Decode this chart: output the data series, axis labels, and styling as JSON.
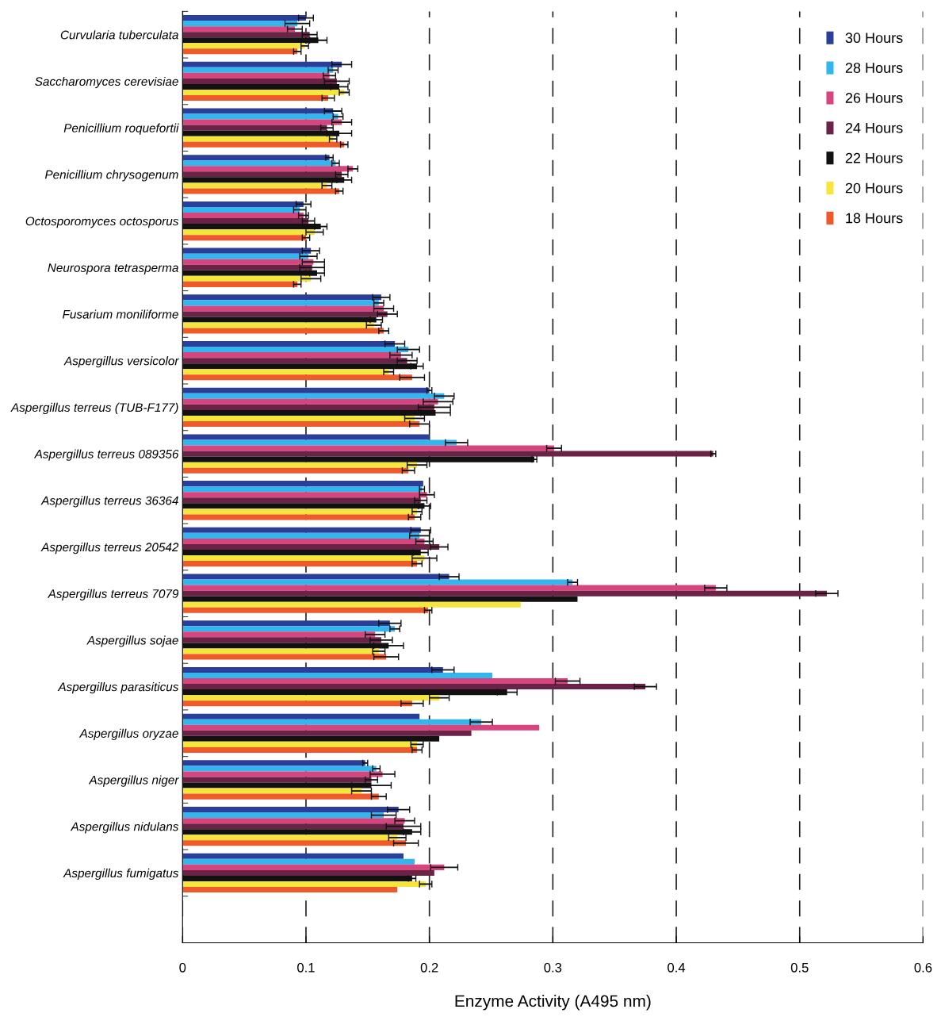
{
  "chart_data": {
    "type": "bar",
    "orientation": "horizontal",
    "xlabel": "Enzyme Activity (A495 nm)",
    "categories": [
      "Curvularia tuberculata",
      "Saccharomyces cerevisiae",
      "Penicillium roquefortii",
      "Penicillium chrysogenum",
      "Octosporomyces octosporus",
      "Neurospora tetrasperma",
      "Fusarium moniliforme",
      "Aspergillus versicolor",
      "Aspergillus terreus (TUB-F177)",
      "Aspergillus terreus 089356",
      "Aspergillus terreus 36364",
      "Aspergillus terreus 20542",
      "Aspergillus terreus 7079",
      "Aspergillus sojae",
      "Aspergillus parasiticus",
      "Aspergillus oryzae",
      "Aspergillus niger",
      "Aspergillus nidulans",
      "Aspergillus fumigatus"
    ],
    "series": [
      {
        "name": "30 Hours",
        "color": "#2b3f9a",
        "values": [
          0.1,
          0.129,
          0.122,
          0.119,
          0.098,
          0.104,
          0.161,
          0.172,
          0.2,
          0.2,
          0.195,
          0.193,
          0.216,
          0.168,
          0.211,
          0.192,
          0.148,
          0.175,
          0.179
        ],
        "errors": [
          0.006,
          0.008,
          0.007,
          0.003,
          0.006,
          0.007,
          0.007,
          0.008,
          0.002,
          null,
          null,
          0.008,
          0.008,
          0.009,
          0.009,
          null,
          0.002,
          0.009,
          null
        ]
      },
      {
        "name": "28 Hours",
        "color": "#33b5ee",
        "values": [
          0.093,
          0.122,
          0.126,
          0.124,
          0.095,
          0.102,
          0.159,
          0.183,
          0.212,
          0.222,
          0.194,
          0.192,
          0.316,
          0.172,
          0.251,
          0.242,
          0.157,
          0.163,
          0.188
        ],
        "errors": [
          0.01,
          0.004,
          0.004,
          0.003,
          0.005,
          0.007,
          0.004,
          0.009,
          0.008,
          0.009,
          0.002,
          0.008,
          0.004,
          0.004,
          null,
          0.009,
          0.003,
          0.01,
          null
        ]
      },
      {
        "name": "26 Hours",
        "color": "#d6457e",
        "values": [
          0.091,
          0.119,
          0.129,
          0.138,
          0.098,
          0.106,
          0.163,
          0.177,
          0.207,
          0.301,
          0.198,
          0.196,
          0.432,
          0.156,
          0.312,
          0.289,
          0.162,
          0.18,
          0.212
        ],
        "errors": [
          0.006,
          0.005,
          0.008,
          0.004,
          0.004,
          0.009,
          0.008,
          0.009,
          0.012,
          0.006,
          0.006,
          0.007,
          0.009,
          0.008,
          0.01,
          null,
          0.01,
          0.008,
          0.011
        ]
      },
      {
        "name": "24 Hours",
        "color": "#6b2345",
        "values": [
          0.103,
          0.125,
          0.117,
          0.129,
          0.102,
          0.105,
          0.166,
          0.182,
          0.204,
          0.43,
          0.193,
          0.208,
          0.522,
          0.161,
          0.375,
          0.234,
          0.153,
          0.179,
          0.204
        ],
        "errors": [
          0.006,
          0.01,
          0.005,
          0.005,
          0.005,
          0.01,
          0.008,
          0.008,
          0.013,
          0.002,
          0.005,
          0.007,
          0.009,
          0.009,
          0.009,
          null,
          0.005,
          0.014,
          null
        ]
      },
      {
        "name": "22 Hours",
        "color": "#111111",
        "values": [
          0.11,
          0.127,
          0.127,
          0.131,
          0.112,
          0.109,
          0.157,
          0.19,
          0.205,
          0.285,
          0.196,
          0.193,
          0.32,
          0.167,
          0.263,
          0.208,
          0.153,
          0.186,
          0.186
        ],
        "errors": [
          0.007,
          0.007,
          0.01,
          0.006,
          0.005,
          0.006,
          0.005,
          0.005,
          0.012,
          0.002,
          0.005,
          0.006,
          null,
          0.012,
          0.008,
          null,
          0.016,
          0.007,
          0.003
        ]
      },
      {
        "name": "20 Hours",
        "color": "#f6e53a",
        "values": [
          0.099,
          0.131,
          0.122,
          0.117,
          0.107,
          0.104,
          0.155,
          0.167,
          0.188,
          0.19,
          0.19,
          0.196,
          0.274,
          0.159,
          0.208,
          0.19,
          0.145,
          0.174,
          0.197
        ],
        "errors": [
          0.003,
          0.004,
          0.003,
          0.004,
          0.007,
          0.008,
          0.006,
          0.004,
          0.008,
          0.008,
          0.004,
          0.01,
          null,
          0.005,
          0.008,
          0.005,
          0.008,
          0.007,
          0.005
        ]
      },
      {
        "name": "18 Hours",
        "color": "#ee5a2a",
        "values": [
          0.093,
          0.118,
          0.131,
          0.127,
          0.1,
          0.093,
          0.163,
          0.186,
          0.192,
          0.183,
          0.188,
          0.19,
          0.199,
          0.165,
          0.186,
          0.19,
          0.159,
          0.181,
          0.174
        ],
        "errors": [
          0.003,
          0.005,
          0.003,
          0.003,
          0.003,
          0.003,
          0.004,
          0.01,
          0.008,
          0.005,
          0.005,
          0.004,
          0.003,
          0.01,
          0.009,
          0.004,
          0.006,
          0.01,
          null
        ]
      }
    ],
    "xlim": [
      0,
      0.6
    ],
    "xticks": [
      0,
      0.1,
      0.2,
      0.3,
      0.4,
      0.5,
      0.6
    ],
    "grid": "x",
    "legend": "top right"
  }
}
